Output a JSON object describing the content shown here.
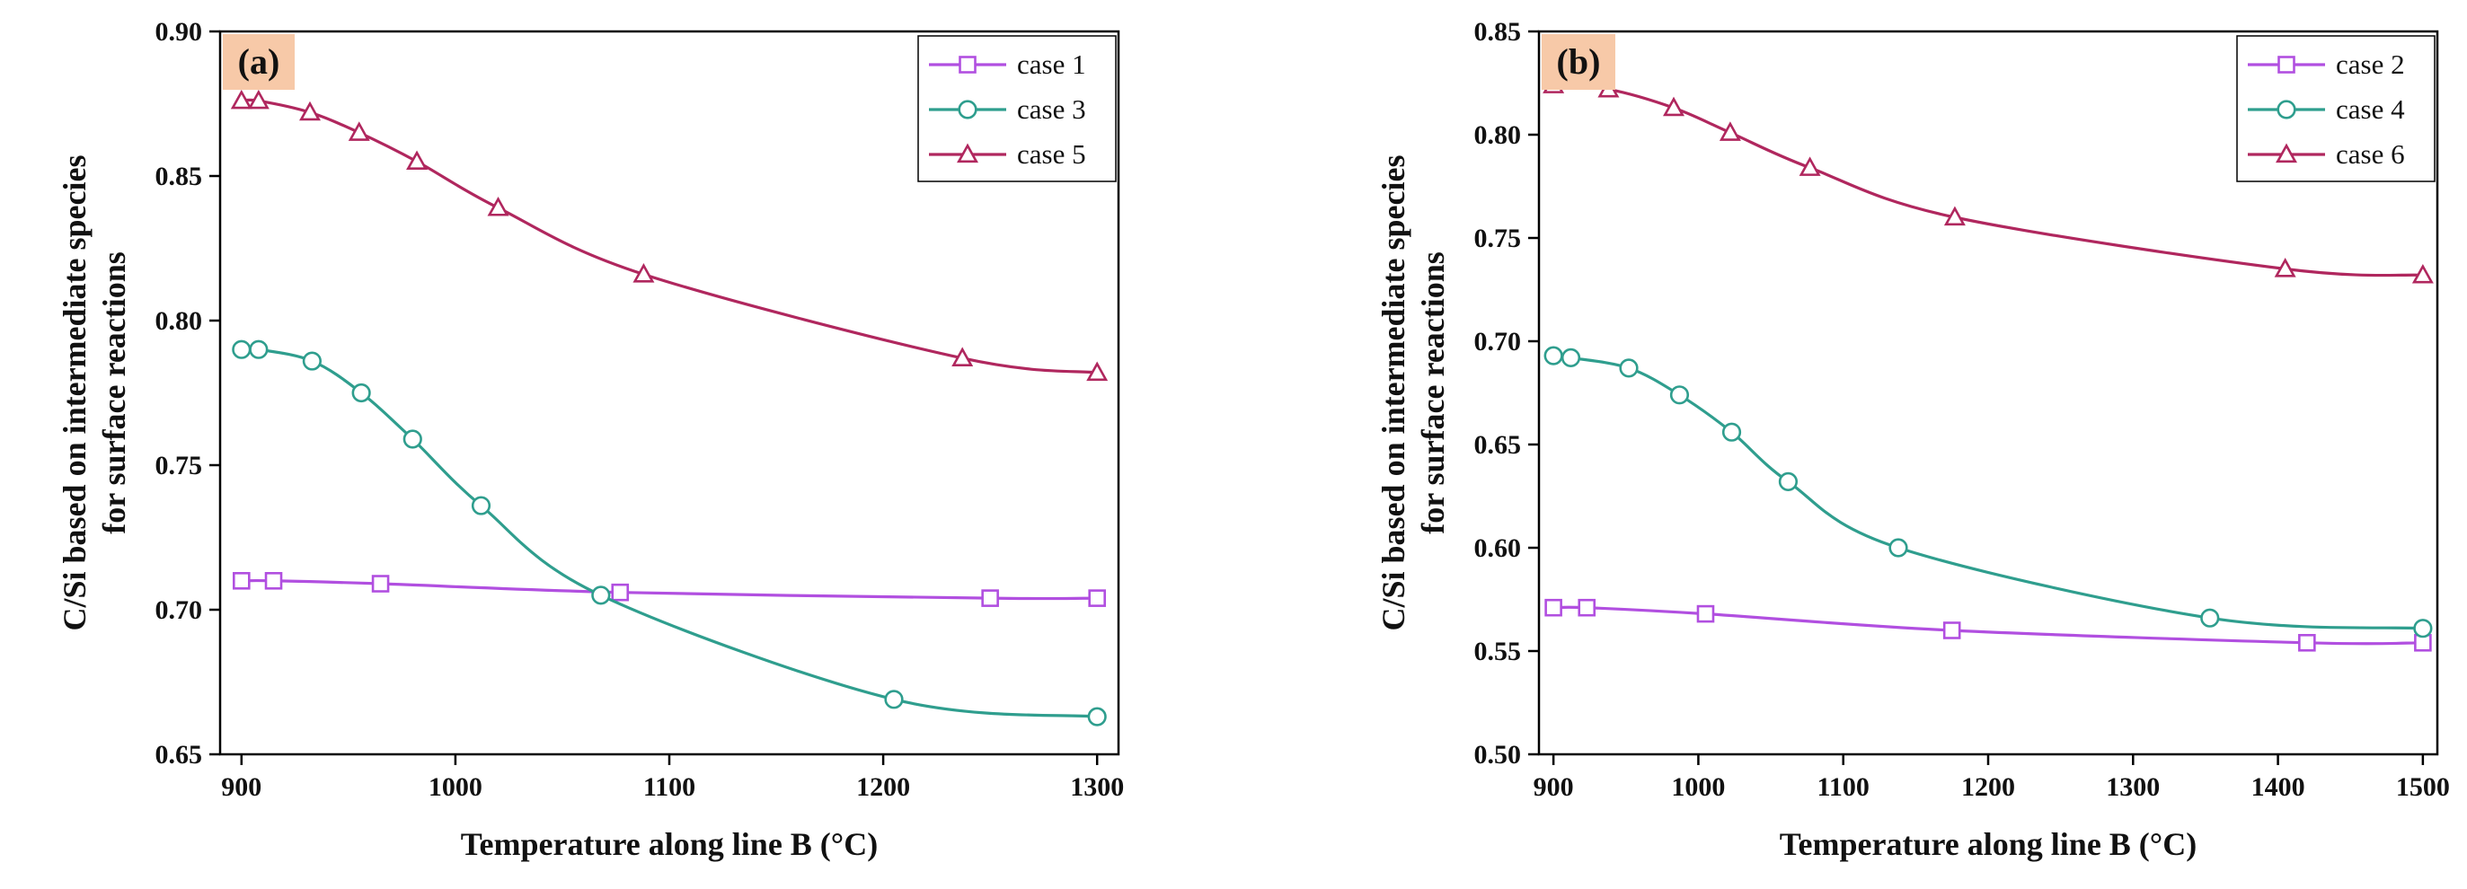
{
  "chart_data": [
    {
      "panel_label": "(a)",
      "type": "line",
      "xlabel": "Temperature along line B (°C)",
      "ylabel": "C/Si based on intermediate species for surface reactions",
      "xlim": [
        890,
        1310
      ],
      "ylim": [
        0.65,
        0.9
      ],
      "xticks": [
        "900",
        "1000",
        "1100",
        "1200",
        "1300"
      ],
      "yticks": [
        "0.65",
        "0.70",
        "0.75",
        "0.80",
        "0.85",
        "0.90"
      ],
      "grid": false,
      "legend_position": "top-right",
      "series": [
        {
          "name": "case 1",
          "marker": "square",
          "color": "#b14fe0",
          "x": [
            900,
            915,
            965,
            1077,
            1250,
            1300
          ],
          "y": [
            0.71,
            0.71,
            0.709,
            0.706,
            0.704,
            0.704
          ]
        },
        {
          "name": "case 3",
          "marker": "circle",
          "color": "#2f9e8e",
          "x": [
            900,
            908,
            933,
            956,
            980,
            1012,
            1068,
            1205,
            1300
          ],
          "y": [
            0.79,
            0.79,
            0.786,
            0.775,
            0.759,
            0.736,
            0.705,
            0.669,
            0.663
          ]
        },
        {
          "name": "case 5",
          "marker": "triangle",
          "color": "#b0275e",
          "x": [
            900,
            908,
            932,
            955,
            982,
            1020,
            1088,
            1237,
            1300
          ],
          "y": [
            0.876,
            0.876,
            0.872,
            0.865,
            0.855,
            0.839,
            0.816,
            0.787,
            0.782
          ]
        }
      ]
    },
    {
      "panel_label": "(b)",
      "type": "line",
      "xlabel": "Temperature along line B (°C)",
      "ylabel": "C/Si based on intermediate species for surface reactions",
      "xlim": [
        890,
        1510
      ],
      "ylim": [
        0.5,
        0.85
      ],
      "xticks": [
        "900",
        "1000",
        "1100",
        "1200",
        "1300",
        "1400",
        "1500"
      ],
      "yticks": [
        "0.50",
        "0.55",
        "0.60",
        "0.65",
        "0.70",
        "0.75",
        "0.80",
        "0.85"
      ],
      "grid": false,
      "legend_position": "top-right",
      "series": [
        {
          "name": "case 2",
          "marker": "square",
          "color": "#b14fe0",
          "x": [
            900,
            923,
            1005,
            1175,
            1420,
            1500
          ],
          "y": [
            0.571,
            0.571,
            0.568,
            0.56,
            0.554,
            0.554
          ]
        },
        {
          "name": "case 4",
          "marker": "circle",
          "color": "#2f9e8e",
          "x": [
            900,
            912,
            952,
            987,
            1023,
            1062,
            1138,
            1353,
            1500
          ],
          "y": [
            0.693,
            0.692,
            0.687,
            0.674,
            0.656,
            0.632,
            0.6,
            0.566,
            0.561
          ]
        },
        {
          "name": "case 6",
          "marker": "triangle",
          "color": "#b0275e",
          "x": [
            900,
            938,
            983,
            1022,
            1077,
            1177,
            1405,
            1500
          ],
          "y": [
            0.824,
            0.822,
            0.813,
            0.801,
            0.784,
            0.76,
            0.735,
            0.732
          ]
        }
      ]
    }
  ]
}
